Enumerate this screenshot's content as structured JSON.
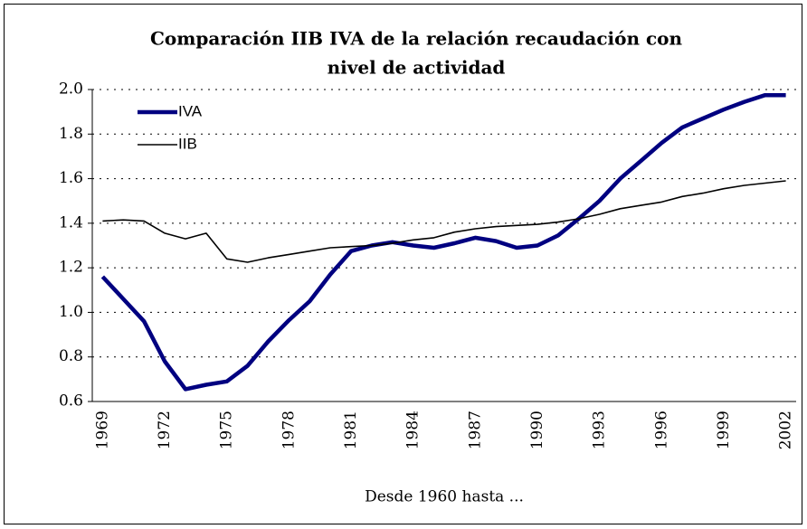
{
  "chart_data": {
    "type": "line",
    "title": [
      "Comparación IIB IVA de la relación recaudación con",
      "nivel de actividad"
    ],
    "x_label": "Desde 1960 hasta ...",
    "categories": [
      "1969",
      null,
      null,
      "1972",
      null,
      null,
      "1975",
      null,
      null,
      "1978",
      null,
      null,
      "1981",
      null,
      null,
      "1984",
      null,
      null,
      "1987",
      null,
      null,
      "1990",
      null,
      null,
      "1993",
      null,
      null,
      "1996",
      null,
      null,
      "1999",
      null,
      null,
      "2002"
    ],
    "series": [
      {
        "name": "IVA",
        "color": "#000080",
        "values": [
          1.16,
          1.06,
          0.96,
          0.78,
          0.655,
          0.675,
          0.69,
          0.76,
          0.87,
          0.965,
          1.05,
          1.17,
          1.275,
          1.3,
          1.315,
          1.3,
          1.29,
          1.31,
          1.335,
          1.32,
          1.29,
          1.3,
          1.345,
          1.42,
          1.5,
          1.6,
          1.68,
          1.76,
          1.83,
          1.87,
          1.91,
          1.945,
          1.975,
          1.975
        ]
      },
      {
        "name": "IIB",
        "color": "#000000",
        "values": [
          1.41,
          1.415,
          1.41,
          1.355,
          1.33,
          1.355,
          1.24,
          1.225,
          1.245,
          1.26,
          1.275,
          1.29,
          1.295,
          1.3,
          1.31,
          1.325,
          1.335,
          1.36,
          1.375,
          1.385,
          1.39,
          1.395,
          1.405,
          1.42,
          1.44,
          1.465,
          1.48,
          1.495,
          1.52,
          1.535,
          1.555,
          1.57,
          1.58,
          1.59
        ]
      }
    ],
    "ylim": [
      0.6,
      2.0
    ],
    "yticks": [
      0.6,
      0.8,
      {
        "value": 1.0,
        "label": "1.0"
      },
      1.2,
      1.4,
      1.6,
      1.8,
      {
        "value": 2.0,
        "label": "2.0"
      }
    ],
    "grid": true,
    "legend": "top-left"
  }
}
